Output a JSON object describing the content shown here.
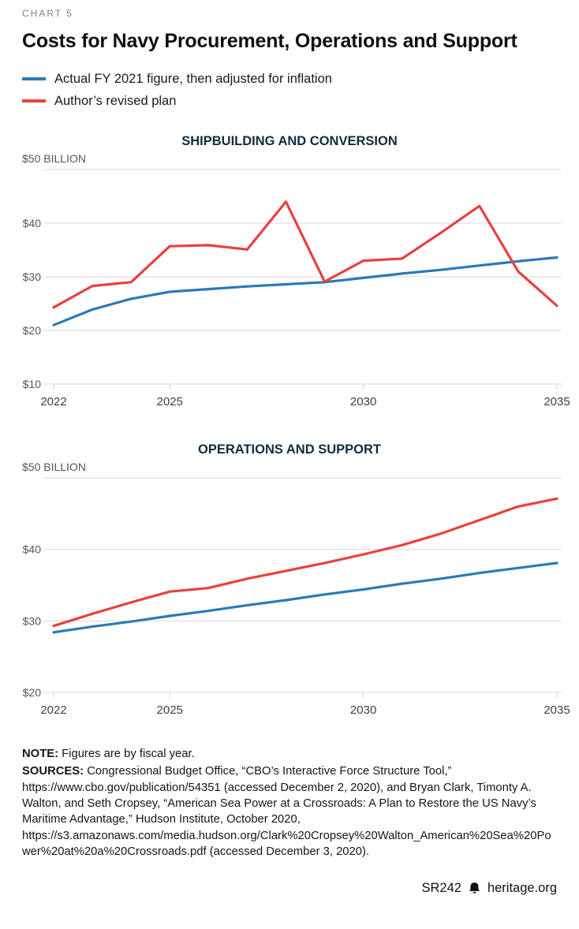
{
  "eyebrow": "CHART 5",
  "title": "Costs for Navy Procurement, Operations and Support",
  "legend": [
    {
      "label": "Actual FY 2021 figure, then adjusted for inflation",
      "color": "#2a7ab8"
    },
    {
      "label": "Author’s revised plan",
      "color": "#e8413c"
    }
  ],
  "chart_data": [
    {
      "type": "line",
      "title": "SHIPBUILDING AND CONVERSION",
      "x": [
        2022,
        2023,
        2024,
        2025,
        2026,
        2027,
        2028,
        2029,
        2030,
        2031,
        2032,
        2033,
        2034,
        2035
      ],
      "series": [
        {
          "name": "Actual FY 2021 figure, then adjusted for inflation",
          "color": "#2a7ab8",
          "values": [
            21.0,
            23.9,
            25.9,
            27.2,
            27.7,
            28.2,
            28.6,
            29.0,
            29.8,
            30.6,
            31.3,
            32.1,
            32.9,
            33.6
          ]
        },
        {
          "name": "Author’s revised plan",
          "color": "#e8413c",
          "values": [
            24.3,
            28.3,
            29.0,
            35.7,
            35.9,
            35.1,
            44.0,
            29.1,
            33.0,
            33.4,
            38.2,
            43.2,
            31.0,
            24.6
          ]
        }
      ],
      "ylim": [
        10,
        50
      ],
      "yticks": [
        10,
        20,
        30,
        40,
        50
      ],
      "ytick_labels": [
        "$10",
        "$20",
        "$30",
        "$40",
        "$50 BILLION"
      ],
      "xticks": [
        2022,
        2025,
        2030,
        2035
      ],
      "xtick_labels": [
        "2022",
        "2025",
        "2030",
        "2035"
      ],
      "grid": "horizontal",
      "legend_position": "top-of-page"
    },
    {
      "type": "line",
      "title": "OPERATIONS AND SUPPORT",
      "x": [
        2022,
        2023,
        2024,
        2025,
        2026,
        2027,
        2028,
        2029,
        2030,
        2031,
        2032,
        2033,
        2034,
        2035
      ],
      "series": [
        {
          "name": "Actual FY 2021 figure, then adjusted for inflation",
          "color": "#2a7ab8",
          "values": [
            28.4,
            29.2,
            29.9,
            30.7,
            31.4,
            32.2,
            32.9,
            33.7,
            34.4,
            35.2,
            35.9,
            36.7,
            37.4,
            38.1
          ]
        },
        {
          "name": "Author’s revised plan",
          "color": "#e8413c",
          "values": [
            29.3,
            31.0,
            32.6,
            34.1,
            34.6,
            35.9,
            37.0,
            38.1,
            39.3,
            40.6,
            42.2,
            44.1,
            46.0,
            47.1
          ]
        }
      ],
      "ylim": [
        20,
        50
      ],
      "yticks": [
        20,
        30,
        40,
        50
      ],
      "ytick_labels": [
        "$20",
        "$30",
        "$40",
        "$50 BILLION"
      ],
      "xticks": [
        2022,
        2025,
        2030,
        2035
      ],
      "xtick_labels": [
        "2022",
        "2025",
        "2030",
        "2035"
      ],
      "grid": "horizontal",
      "legend_position": "top-of-page"
    }
  ],
  "notes": {
    "note_label": "NOTE:",
    "note_text": " Figures are by fiscal year.",
    "sources_label": "SOURCES:",
    "sources_text": " Congressional Budget Office, “CBO’s Interactive Force Structure Tool,” https://www.cbo.gov/publication/54351 (accessed December 2, 2020), and Bryan Clark, Timonty A. Walton, and Seth Cropsey, “American Sea Power at a Crossroads: A Plan to Restore the US Navy’s Maritime Advantage,” Hudson Institute, October 2020, https://s3.amazonaws.com/media.hudson.org/Clark%20Cropsey%20Walton_American%20Sea%20Power%20at%20a%20Crossroads.pdf (accessed December 3, 2020)."
  },
  "footer": {
    "report_id": "SR242",
    "site": "heritage.org"
  },
  "colors": {
    "grid": "#d9d9d9",
    "axis_text": "#555555",
    "x_label_text": "#3f3f3f"
  }
}
